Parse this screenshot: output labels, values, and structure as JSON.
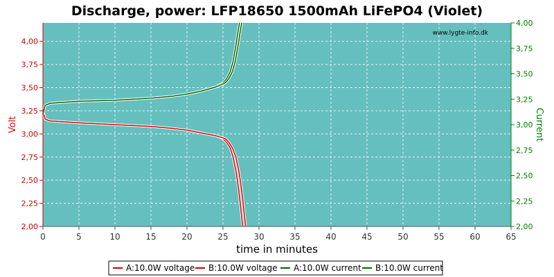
{
  "chart_data": {
    "type": "line",
    "title": "Discharge, power: LFP18650 1500mAh LiFePO4 (Violet)",
    "watermark": "www.lygte-info.dk",
    "xlabel": "time in minutes",
    "ylabel_left": "Volt",
    "ylabel_right": "Current",
    "xlim": [
      0,
      65
    ],
    "ylim_left": [
      2.0,
      4.2
    ],
    "ylim_right": [
      2.0,
      4.0
    ],
    "x_ticks": [
      "0",
      "5",
      "10",
      "15",
      "20",
      "25",
      "30",
      "35",
      "40",
      "45",
      "50",
      "55",
      "60",
      "65"
    ],
    "y_ticks_left": [
      "2,00",
      "2,25",
      "2,50",
      "2,75",
      "3,00",
      "3,25",
      "3,50",
      "3,75",
      "4,00"
    ],
    "y_ticks_right": [
      "2,00",
      "2,25",
      "2,50",
      "2,75",
      "3,00",
      "3,25",
      "3,50",
      "3,75",
      "4,00"
    ],
    "grid": true,
    "legend_position": "bottom",
    "colors": {
      "plot_bg": "#66bfbf",
      "voltage": "#cc0000",
      "current": "#006400",
      "left_axis": "#cc0000",
      "right_axis": "#008000"
    },
    "series": [
      {
        "name": "A:10.0W voltage",
        "axis": "left",
        "color": "#cc0000",
        "x": [
          0,
          0.3,
          1,
          3,
          5,
          10,
          15,
          18,
          20,
          22,
          24,
          25,
          25.5,
          26,
          26.4,
          26.8,
          27.0,
          27.2,
          27.4,
          27.6,
          27.75
        ],
        "y": [
          3.25,
          3.16,
          3.14,
          3.13,
          3.12,
          3.1,
          3.08,
          3.06,
          3.04,
          3.01,
          2.98,
          2.95,
          2.91,
          2.85,
          2.75,
          2.6,
          2.5,
          2.38,
          2.25,
          2.1,
          2.0
        ]
      },
      {
        "name": "B:10.0W voltage",
        "axis": "left",
        "color": "#cc0000",
        "x": [
          0,
          0.3,
          1,
          3,
          5,
          10,
          15,
          18,
          20,
          22,
          24,
          25.3,
          25.8,
          26.3,
          26.8,
          27.2,
          27.4,
          27.6,
          27.8,
          28.0,
          28.15
        ],
        "y": [
          3.25,
          3.16,
          3.14,
          3.13,
          3.12,
          3.1,
          3.08,
          3.06,
          3.04,
          3.01,
          2.98,
          2.95,
          2.91,
          2.85,
          2.75,
          2.6,
          2.5,
          2.38,
          2.25,
          2.1,
          2.0
        ]
      },
      {
        "name": "A:10.0W current",
        "axis": "right",
        "color": "#006400",
        "x": [
          0,
          0.3,
          1,
          3,
          5,
          10,
          15,
          18,
          20,
          22,
          24,
          25,
          25.5,
          26.0,
          26.4,
          26.8,
          27.1,
          27.3
        ],
        "y": [
          3.1,
          3.19,
          3.21,
          3.22,
          3.23,
          3.24,
          3.26,
          3.28,
          3.3,
          3.33,
          3.37,
          3.41,
          3.45,
          3.52,
          3.62,
          3.78,
          3.92,
          4.0
        ]
      },
      {
        "name": "B:10.0W current",
        "axis": "right",
        "color": "#006400",
        "x": [
          0,
          0.3,
          1,
          3,
          5,
          10,
          15,
          18,
          20,
          22,
          24,
          25.3,
          25.8,
          26.3,
          26.7,
          27.1,
          27.4,
          27.6
        ],
        "y": [
          3.1,
          3.19,
          3.21,
          3.22,
          3.23,
          3.24,
          3.26,
          3.28,
          3.3,
          3.33,
          3.37,
          3.41,
          3.45,
          3.52,
          3.62,
          3.78,
          3.92,
          4.0
        ]
      }
    ]
  }
}
